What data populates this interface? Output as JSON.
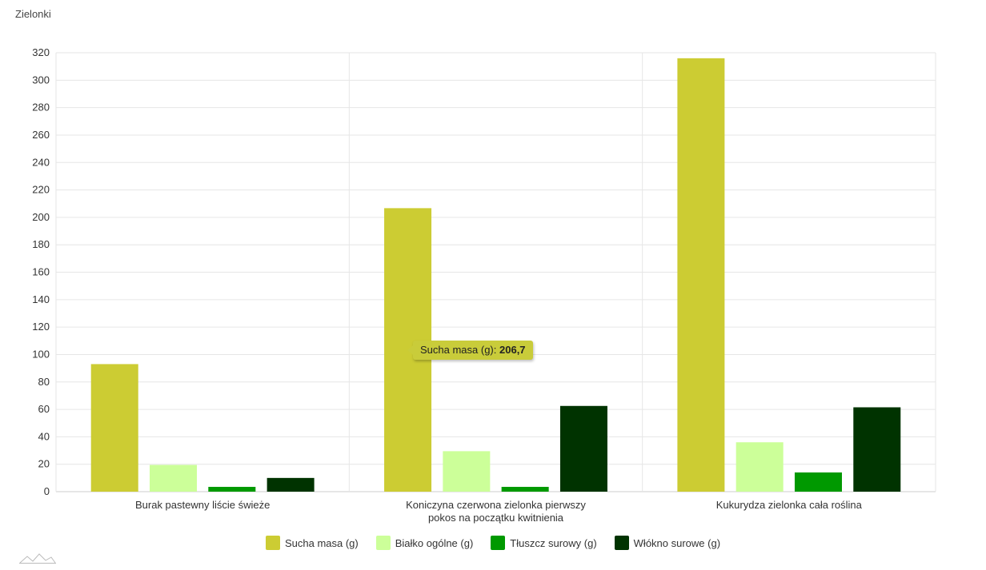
{
  "title": "Zielonki",
  "colors": {
    "Sucha masa (g)": "#cccc33",
    "Białko ogólne (g)": "#ccff99",
    "Tłuszcz surowy (g)": "#009900",
    "Włókno surowe (g)": "#003300"
  },
  "tooltip": {
    "label": "Sucha masa (g):",
    "value": "206,7"
  },
  "chart_data": {
    "type": "bar",
    "title": "Zielonki",
    "categories": [
      [
        "Burak pastewny liście świeże"
      ],
      [
        "Koniczyna czerwona zielonka pierwszy",
        "pokos na początku kwitnienia"
      ],
      [
        "Kukurydza zielonka cała roślina"
      ]
    ],
    "series": [
      {
        "name": "Sucha masa (g)",
        "values": [
          93,
          206.7,
          316
        ]
      },
      {
        "name": "Białko ogólne (g)",
        "values": [
          19.5,
          29.5,
          36
        ]
      },
      {
        "name": "Tłuszcz surowy (g)",
        "values": [
          3.5,
          3.5,
          14
        ]
      },
      {
        "name": "Włókno surowe (g)",
        "values": [
          10,
          62.5,
          61.5
        ]
      }
    ],
    "ylim": [
      0,
      320
    ],
    "yticks": [
      0,
      20,
      40,
      60,
      80,
      100,
      120,
      140,
      160,
      180,
      200,
      220,
      240,
      260,
      280,
      300,
      320
    ],
    "grid": true,
    "legend": "bottom"
  }
}
